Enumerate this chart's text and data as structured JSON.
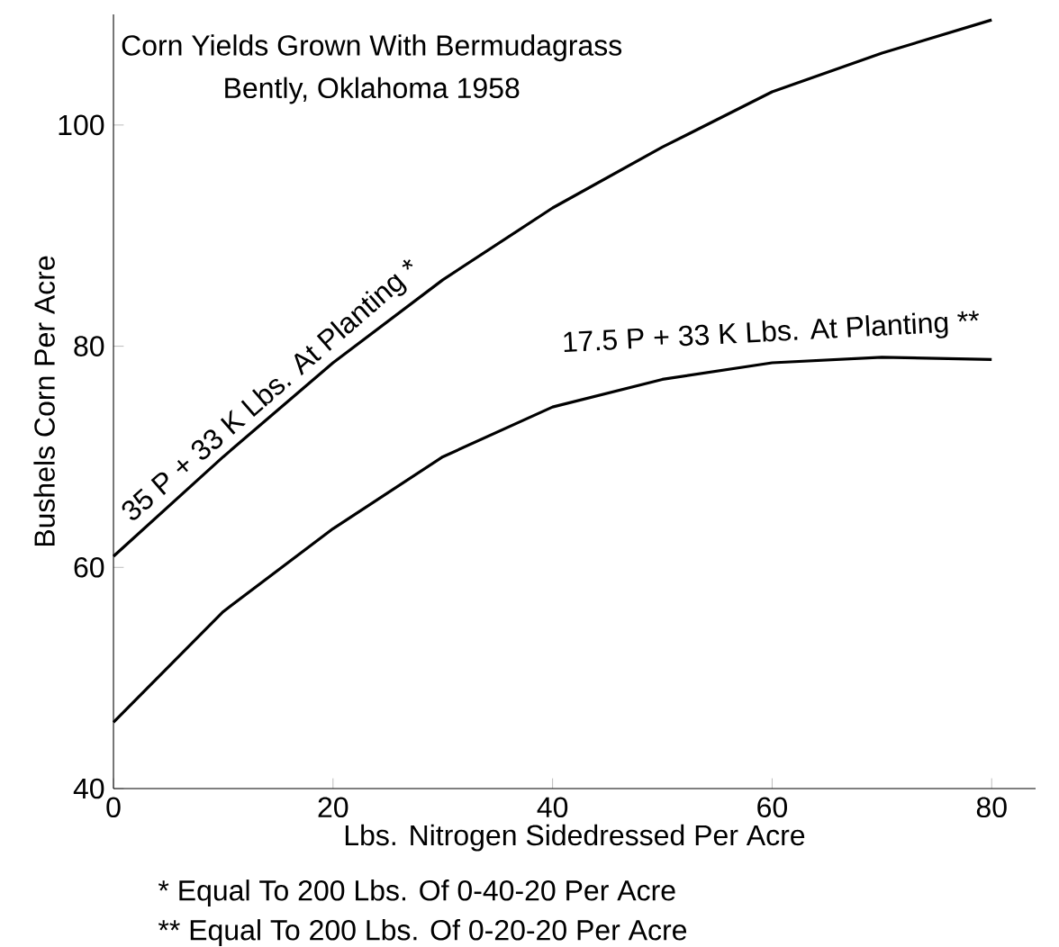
{
  "chart_data": {
    "type": "line",
    "title": "Corn Yields Grown With Bermudagrass",
    "subtitle": "Bently, Oklahoma 1958",
    "xlabel": "Lbs. Nitrogen Sidedressed Per Acre",
    "ylabel": "Bushels Corn Per Acre",
    "x": [
      0,
      10,
      20,
      30,
      40,
      50,
      60,
      70,
      80
    ],
    "series": [
      {
        "name": "35 P + 33 K Lbs. At Planting *",
        "color": "#000000",
        "values": [
          61,
          70,
          78.5,
          86,
          92.5,
          98,
          103,
          106.5,
          109.5
        ]
      },
      {
        "name": "17.5 P + 33 K Lbs. At Planting **",
        "color": "#000000",
        "values": [
          46,
          56,
          63.5,
          70,
          74.5,
          77,
          78.5,
          79,
          78.8
        ]
      }
    ],
    "xlim": [
      0,
      84
    ],
    "ylim": [
      40,
      110
    ],
    "xticks": [
      0,
      20,
      40,
      60,
      80
    ],
    "yticks": [
      40,
      60,
      80,
      100
    ],
    "grid": false,
    "legend": false,
    "marker": "none",
    "line_style": "solid",
    "annotations": [
      "* Equal To 200 Lbs. Of 0-40-20 Per Acre",
      "** Equal To 200 Lbs. Of 0-20-20 Per Acre"
    ]
  }
}
